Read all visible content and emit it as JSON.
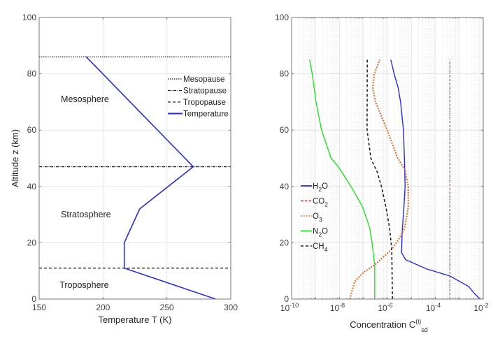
{
  "chart_data": [
    {
      "type": "line",
      "title": "",
      "xlabel": "Temperature T (K)",
      "ylabel": "Altitude z (km)",
      "xlim": [
        150,
        300
      ],
      "ylim": [
        0,
        100
      ],
      "xticks": [
        150,
        200,
        250,
        300
      ],
      "yticks": [
        0,
        20,
        40,
        60,
        80,
        100
      ],
      "grid": true,
      "legend_position": "top-right",
      "series": [
        {
          "name": "Temperature",
          "color": "#2a2ae0",
          "style": "solid",
          "x": [
            288.15,
            216.65,
            216.65,
            228.65,
            270.65,
            186.87
          ],
          "y": [
            0,
            11,
            20,
            32,
            47,
            86
          ]
        }
      ],
      "hlines": [
        {
          "name": "Mesopause",
          "y": 86,
          "style": "dotted",
          "color": "#222222"
        },
        {
          "name": "Stratopause",
          "y": 47,
          "style": "dashdot",
          "color": "#222222"
        },
        {
          "name": "Tropopause",
          "y": 11,
          "style": "dashed",
          "color": "#222222"
        }
      ],
      "legend": [
        "Mesopause",
        "Stratopause",
        "Tropopause",
        "Temperature"
      ],
      "annotations": [
        {
          "text": "Mesosphere",
          "x": 167,
          "y": 71
        },
        {
          "text": "Stratosphere",
          "x": 167,
          "y": 30
        },
        {
          "text": "Troposphere",
          "x": 166,
          "y": 5
        }
      ]
    },
    {
      "type": "line",
      "title": "",
      "xlabel": "Concentration C",
      "xlabel_sup": "(i)",
      "xlabel_sub": "sd",
      "ylabel": "",
      "xscale": "log",
      "xlim": [
        1e-10,
        0.01
      ],
      "ylim": [
        0,
        100
      ],
      "xticks": [
        -10,
        -8,
        -6,
        -4,
        -2
      ],
      "xtick_labels": [
        "10",
        "10",
        "10",
        "10",
        "10"
      ],
      "xtick_exponents": [
        "-10",
        "-8",
        "-6",
        "-4",
        "-2"
      ],
      "yticks": [
        0,
        20,
        40,
        60,
        80,
        100
      ],
      "grid": true,
      "minor_grid": true,
      "legend_position": "center-left",
      "series": [
        {
          "name": "H2O",
          "label": "H",
          "sub": "2",
          "tail": "O",
          "color": "#2a2ae0",
          "style": "solid",
          "log10x": [
            -2.13,
            -2.37,
            -2.61,
            -3.39,
            -4.36,
            -5.24,
            -5.41,
            -5.38,
            -5.31,
            -5.26,
            -5.29,
            -5.33,
            -5.45,
            -5.55,
            -5.72,
            -5.86
          ],
          "y": [
            0,
            2,
            4.5,
            8.2,
            10.7,
            14,
            16.5,
            24.4,
            32.6,
            40,
            50,
            60,
            70,
            75,
            80,
            85
          ]
        },
        {
          "name": "CO2",
          "label": "CO",
          "sub": "2",
          "tail": "",
          "color": "#e02020",
          "style": "dashdot",
          "log10x": [
            -3.39,
            -3.39
          ],
          "y": [
            0,
            85
          ]
        },
        {
          "name": "O3",
          "label": "O",
          "sub": "3",
          "tail": "",
          "color": "#e06a2a",
          "style": "dotted",
          "log10x": [
            -7.57,
            -7.37,
            -6.98,
            -6.55,
            -5.82,
            -5.47,
            -5.28,
            -5.13,
            -5.13,
            -5.28,
            -5.57,
            -6.01,
            -6.25,
            -6.5,
            -6.61,
            -6.55,
            -6.32
          ],
          "y": [
            0,
            6.2,
            9.6,
            12,
            17.7,
            22,
            25.2,
            32.6,
            40,
            46,
            50,
            60,
            65,
            70,
            75,
            80,
            85
          ]
        },
        {
          "name": "N2O",
          "label": "N",
          "sub": "2",
          "tail": "O",
          "color": "#22e022",
          "style": "solid",
          "log10x": [
            -6.53,
            -6.53,
            -6.64,
            -6.74,
            -7.03,
            -7.52,
            -8.05,
            -8.35,
            -8.75,
            -8.98,
            -9.14,
            -9.25
          ],
          "y": [
            0,
            12,
            20,
            25.2,
            32.6,
            40,
            47,
            50,
            60,
            70,
            80,
            85
          ]
        },
        {
          "name": "CH4",
          "label": "CH",
          "sub": "4",
          "tail": "",
          "color": "#222222",
          "style": "dashed",
          "log10x": [
            -5.79,
            -5.82,
            -5.91,
            -6.06,
            -6.25,
            -6.42,
            -6.64,
            -6.69,
            -6.85,
            -6.84
          ],
          "y": [
            0,
            17.7,
            25.2,
            32.6,
            40,
            45,
            49,
            50,
            60,
            85
          ]
        }
      ]
    }
  ]
}
